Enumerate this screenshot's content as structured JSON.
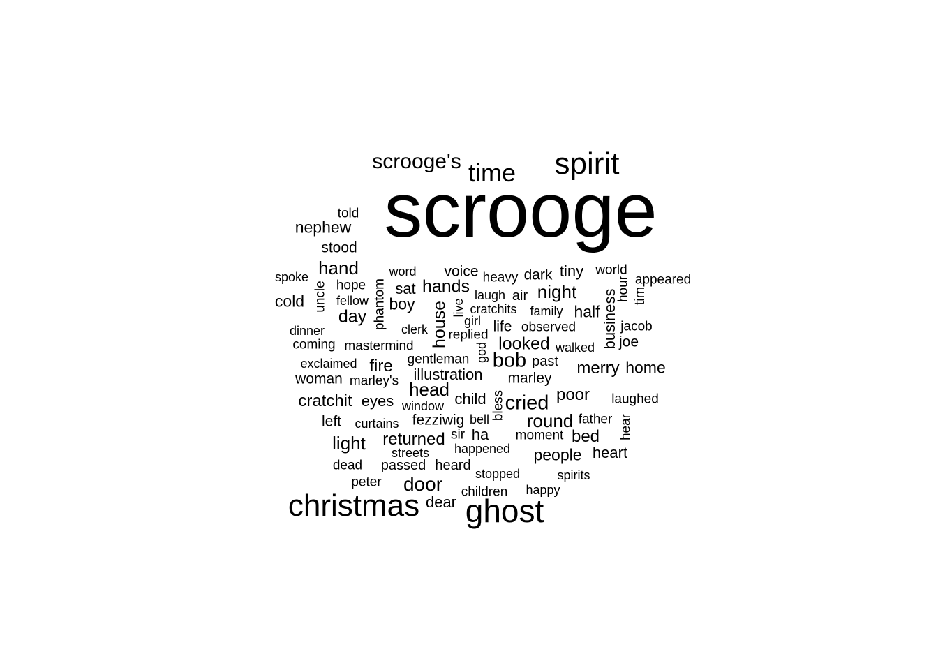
{
  "cloud": {
    "color": "#000000",
    "words": [
      {
        "text": "scrooge"
      },
      {
        "text": "spirit"
      },
      {
        "text": "time"
      },
      {
        "text": "scrooge's"
      },
      {
        "text": "christmas"
      },
      {
        "text": "ghost"
      },
      {
        "text": "told"
      },
      {
        "text": "nephew"
      },
      {
        "text": "stood"
      },
      {
        "text": "hand"
      },
      {
        "text": "spoke"
      },
      {
        "text": "word"
      },
      {
        "text": "voice"
      },
      {
        "text": "heavy"
      },
      {
        "text": "dark"
      },
      {
        "text": "tiny"
      },
      {
        "text": "world"
      },
      {
        "text": "appeared"
      },
      {
        "text": "hope"
      },
      {
        "text": "phantom"
      },
      {
        "text": "uncle"
      },
      {
        "text": "sat"
      },
      {
        "text": "hands"
      },
      {
        "text": "laugh"
      },
      {
        "text": "air"
      },
      {
        "text": "night"
      },
      {
        "text": "hour"
      },
      {
        "text": "tim"
      },
      {
        "text": "cold"
      },
      {
        "text": "fellow"
      },
      {
        "text": "boy"
      },
      {
        "text": "house"
      },
      {
        "text": "live"
      },
      {
        "text": "cratchits"
      },
      {
        "text": "family"
      },
      {
        "text": "half"
      },
      {
        "text": "business"
      },
      {
        "text": "day"
      },
      {
        "text": "girl"
      },
      {
        "text": "dinner"
      },
      {
        "text": "clerk"
      },
      {
        "text": "replied"
      },
      {
        "text": "life"
      },
      {
        "text": "observed"
      },
      {
        "text": "jacob"
      },
      {
        "text": "coming"
      },
      {
        "text": "mastermind"
      },
      {
        "text": "god"
      },
      {
        "text": "looked"
      },
      {
        "text": "walked"
      },
      {
        "text": "joe"
      },
      {
        "text": "exclaimed"
      },
      {
        "text": "fire"
      },
      {
        "text": "gentleman"
      },
      {
        "text": "bob"
      },
      {
        "text": "past"
      },
      {
        "text": "merry"
      },
      {
        "text": "home"
      },
      {
        "text": "woman"
      },
      {
        "text": "marley's"
      },
      {
        "text": "illustration"
      },
      {
        "text": "marley"
      },
      {
        "text": "head"
      },
      {
        "text": "bless"
      },
      {
        "text": "poor"
      },
      {
        "text": "cratchit"
      },
      {
        "text": "eyes"
      },
      {
        "text": "window"
      },
      {
        "text": "child"
      },
      {
        "text": "cried"
      },
      {
        "text": "laughed"
      },
      {
        "text": "left"
      },
      {
        "text": "curtains"
      },
      {
        "text": "fezziwig"
      },
      {
        "text": "bell"
      },
      {
        "text": "round"
      },
      {
        "text": "father"
      },
      {
        "text": "hear"
      },
      {
        "text": "light"
      },
      {
        "text": "returned"
      },
      {
        "text": "sir"
      },
      {
        "text": "ha"
      },
      {
        "text": "moment"
      },
      {
        "text": "bed"
      },
      {
        "text": "happened"
      },
      {
        "text": "streets"
      },
      {
        "text": "people"
      },
      {
        "text": "heart"
      },
      {
        "text": "dead"
      },
      {
        "text": "passed"
      },
      {
        "text": "heard"
      },
      {
        "text": "stopped"
      },
      {
        "text": "spirits"
      },
      {
        "text": "peter"
      },
      {
        "text": "door"
      },
      {
        "text": "happy"
      },
      {
        "text": "dear"
      },
      {
        "text": "children"
      }
    ]
  }
}
